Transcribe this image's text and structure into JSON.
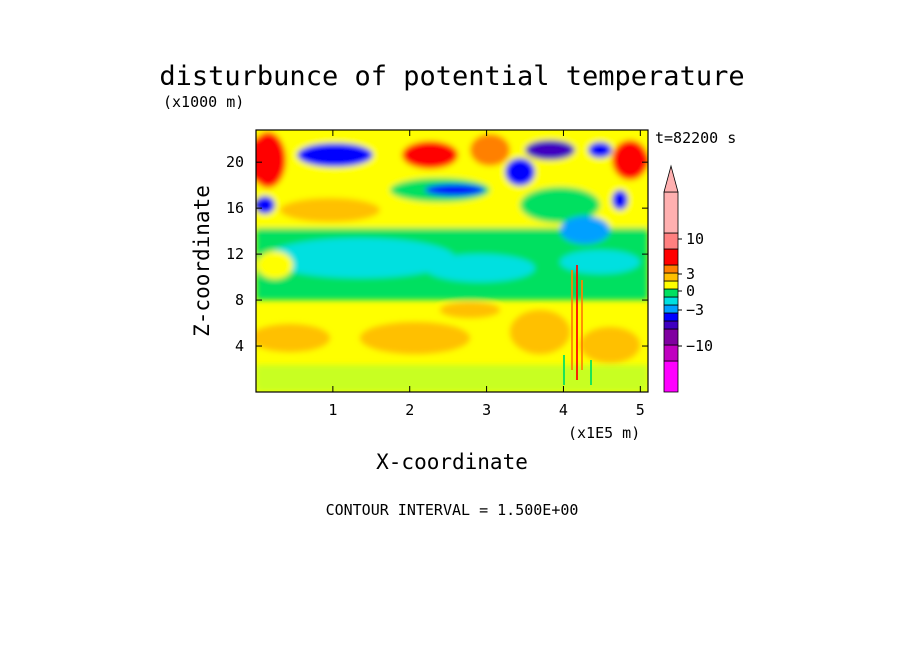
{
  "chart_data": {
    "type": "heatmap",
    "title": "disturbunce of potential temperature",
    "y_unit_label": "(x1000 m)",
    "x_unit_label": "(x1E5 m)",
    "xlabel": "X-coordinate",
    "ylabel": "Z-coordinate",
    "time_label": "t=82200 s",
    "contour_note": "CONTOUR INTERVAL = 1.500E+00",
    "x_ticks": [
      "1",
      "2",
      "3",
      "4",
      "5"
    ],
    "x_tick_values": [
      1,
      2,
      3,
      4,
      5
    ],
    "y_ticks": [
      "4",
      "8",
      "12",
      "16",
      "20"
    ],
    "y_tick_values": [
      4,
      8,
      12,
      16,
      20
    ],
    "xlim": [
      0,
      5.1
    ],
    "ylim": [
      0,
      22.8
    ],
    "colorbar": {
      "tick_labels": [
        "10",
        "3",
        "0",
        "−3",
        "−10"
      ],
      "tick_values": [
        10,
        3,
        0,
        -3,
        -10
      ],
      "levels": [
        {
          "color": "#ff00ff",
          "range": "< -15"
        },
        {
          "color": "#c000c0",
          "range": "-15 to -10"
        },
        {
          "color": "#8000a0",
          "range": "-10 to -6"
        },
        {
          "color": "#4000c0",
          "range": "-6 to -4.5"
        },
        {
          "color": "#0000ff",
          "range": "-4.5 to -3"
        },
        {
          "color": "#00a0ff",
          "range": "-3 to -1.5"
        },
        {
          "color": "#00e0e0",
          "range": "-1.5 to 0"
        },
        {
          "color": "#00e060",
          "range": "0 to 1.5"
        },
        {
          "color": "#ffff00",
          "range": "1.5 to 3"
        },
        {
          "color": "#ffc000",
          "range": "3 to 4.5"
        },
        {
          "color": "#ff8000",
          "range": "4.5 to 6"
        },
        {
          "color": "#ff0000",
          "range": "6 to 10"
        },
        {
          "color": "#ff8080",
          "range": "10 to 15"
        },
        {
          "color": "#ffb0b0",
          "range": "> 15"
        }
      ]
    },
    "field_bands": [
      {
        "z_range": [
          0,
          3
        ],
        "description": "yellow-green, weak positive"
      },
      {
        "z_range": [
          3,
          8
        ],
        "description": "yellow/orange, positive 1.5-4.5"
      },
      {
        "z_range": [
          8,
          15
        ],
        "description": "green/cyan, near zero"
      },
      {
        "z_range": [
          15,
          22.8
        ],
        "description": "mixed red/orange and blue/purple extremes"
      }
    ]
  }
}
